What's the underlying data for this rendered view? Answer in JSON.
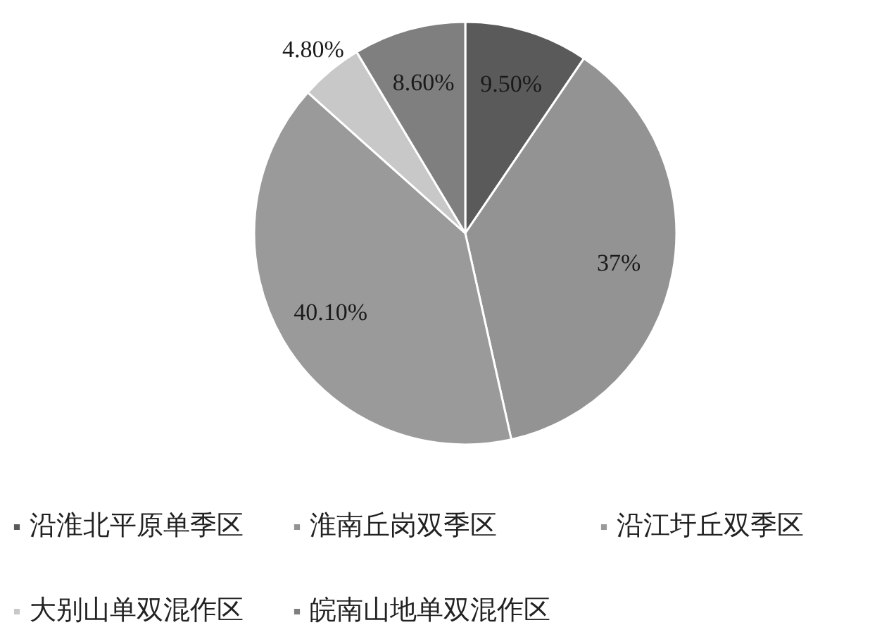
{
  "chart_data": {
    "type": "pie",
    "categories": [
      "沿淮北平原单季区",
      "淮南丘岗双季区",
      "沿江圩丘双季区",
      "大别山单双混作区",
      "皖南山地单双混作区"
    ],
    "values": [
      9.5,
      37,
      40.1,
      4.8,
      8.6
    ],
    "colors": [
      "#5a5a5a",
      "#939393",
      "#9a9a9a",
      "#c8c8c8",
      "#7f7f7f"
    ],
    "value_labels": [
      "9.50%",
      "37%",
      "40.10%",
      "4.80%",
      "8.60%"
    ],
    "legend": "bottom"
  }
}
